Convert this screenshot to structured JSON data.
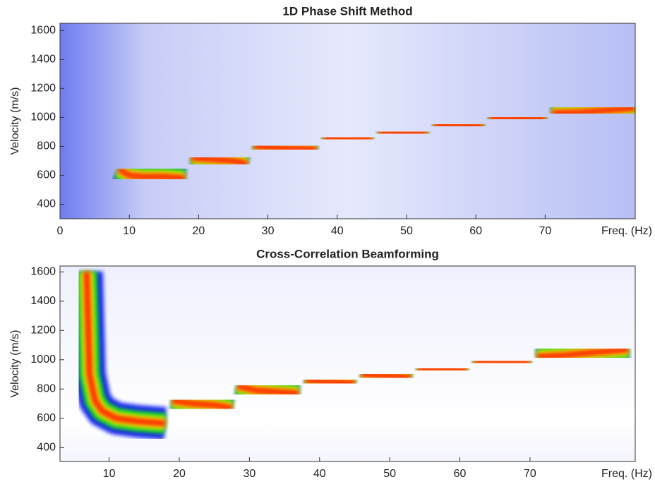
{
  "chart_data": [
    {
      "type": "line",
      "title": "1D Phase Shift Method",
      "xlabel": "Freq. (Hz)",
      "ylabel": "Velocity (m/s)",
      "xlim": [
        0,
        83
      ],
      "ylim": [
        300,
        1650
      ],
      "xticks": [
        0,
        10,
        20,
        30,
        40,
        50,
        60,
        70
      ],
      "yticks": [
        400,
        600,
        800,
        1000,
        1200,
        1400,
        1600
      ],
      "colors": [
        "#0a1cf0",
        "#16e016",
        "#f4f400",
        "#ff2a00"
      ],
      "x": [
        8.5,
        10,
        12,
        15,
        18,
        18.5,
        19,
        22,
        25,
        27,
        27.5,
        28,
        31,
        34,
        37,
        37.5,
        38,
        41,
        45,
        45.5,
        46,
        49,
        53,
        53.5,
        54,
        57,
        61,
        61.5,
        62,
        66,
        70,
        70.5,
        71,
        75,
        79,
        83
      ],
      "values": [
        640,
        600,
        590,
        590,
        580,
        null,
        720,
        710,
        700,
        680,
        null,
        800,
        790,
        785,
        780,
        null,
        860,
        855,
        850,
        null,
        900,
        895,
        890,
        null,
        950,
        945,
        940,
        null,
        1000,
        995,
        990,
        null,
        1030,
        1035,
        1050,
        1065
      ]
    },
    {
      "type": "line",
      "title": "Cross-Correlation Beamforming",
      "xlabel": "Freq. (Hz)",
      "ylabel": "Velocity (m/s)",
      "xlim": [
        3,
        85
      ],
      "ylim": [
        305,
        1640
      ],
      "xticks": [
        10,
        20,
        30,
        40,
        50,
        60,
        70
      ],
      "yticks": [
        400,
        600,
        800,
        1000,
        1200,
        1400,
        1600
      ],
      "colors": [
        "#0a1cf0",
        "#16e016",
        "#f4f400",
        "#ff2a00"
      ],
      "x": [
        6.8,
        7.2,
        8,
        9,
        11,
        14,
        18,
        18.5,
        19,
        22,
        25,
        27.5,
        28,
        28.3,
        31,
        34,
        37,
        37.5,
        38,
        41,
        45,
        45.5,
        46,
        49,
        53,
        53.5,
        54,
        57,
        61,
        61.5,
        62,
        66,
        70,
        70.5,
        71,
        75,
        79,
        84
      ],
      "values": [
        1600,
        900,
        720,
        650,
        600,
        580,
        565,
        null,
        720,
        700,
        690,
        670,
        null,
        820,
        790,
        780,
        770,
        null,
        860,
        850,
        840,
        null,
        900,
        890,
        880,
        null,
        940,
        935,
        930,
        null,
        990,
        985,
        980,
        null,
        1020,
        1030,
        1050,
        1070
      ]
    }
  ]
}
